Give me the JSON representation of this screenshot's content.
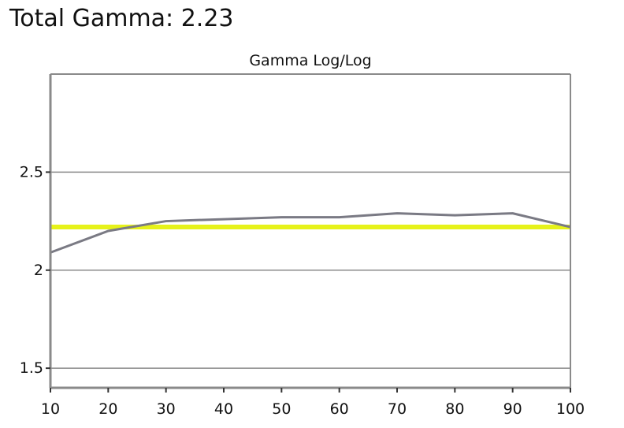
{
  "headline": "Total Gamma: 2.23",
  "chart_data": {
    "type": "line",
    "title": "Gamma Log/Log",
    "xlabel": "",
    "ylabel": "",
    "xlim": [
      10,
      100
    ],
    "ylim": [
      1.4,
      3.0
    ],
    "x_ticks": [
      10,
      20,
      30,
      40,
      50,
      60,
      70,
      80,
      90,
      100
    ],
    "y_ticks": [
      1.5,
      2,
      2.5
    ],
    "y_tick_labels": [
      "1.5",
      "2",
      "2.5"
    ],
    "grid": true,
    "series": [
      {
        "color": "#7a7a84",
        "x": [
          10,
          20,
          30,
          40,
          50,
          60,
          70,
          80,
          90,
          100
        ],
        "y": [
          2.09,
          2.2,
          2.25,
          2.26,
          2.27,
          2.27,
          2.29,
          2.28,
          2.29,
          2.22
        ]
      }
    ],
    "reference_line": {
      "y": 2.22,
      "color": "#e6f21a"
    }
  }
}
